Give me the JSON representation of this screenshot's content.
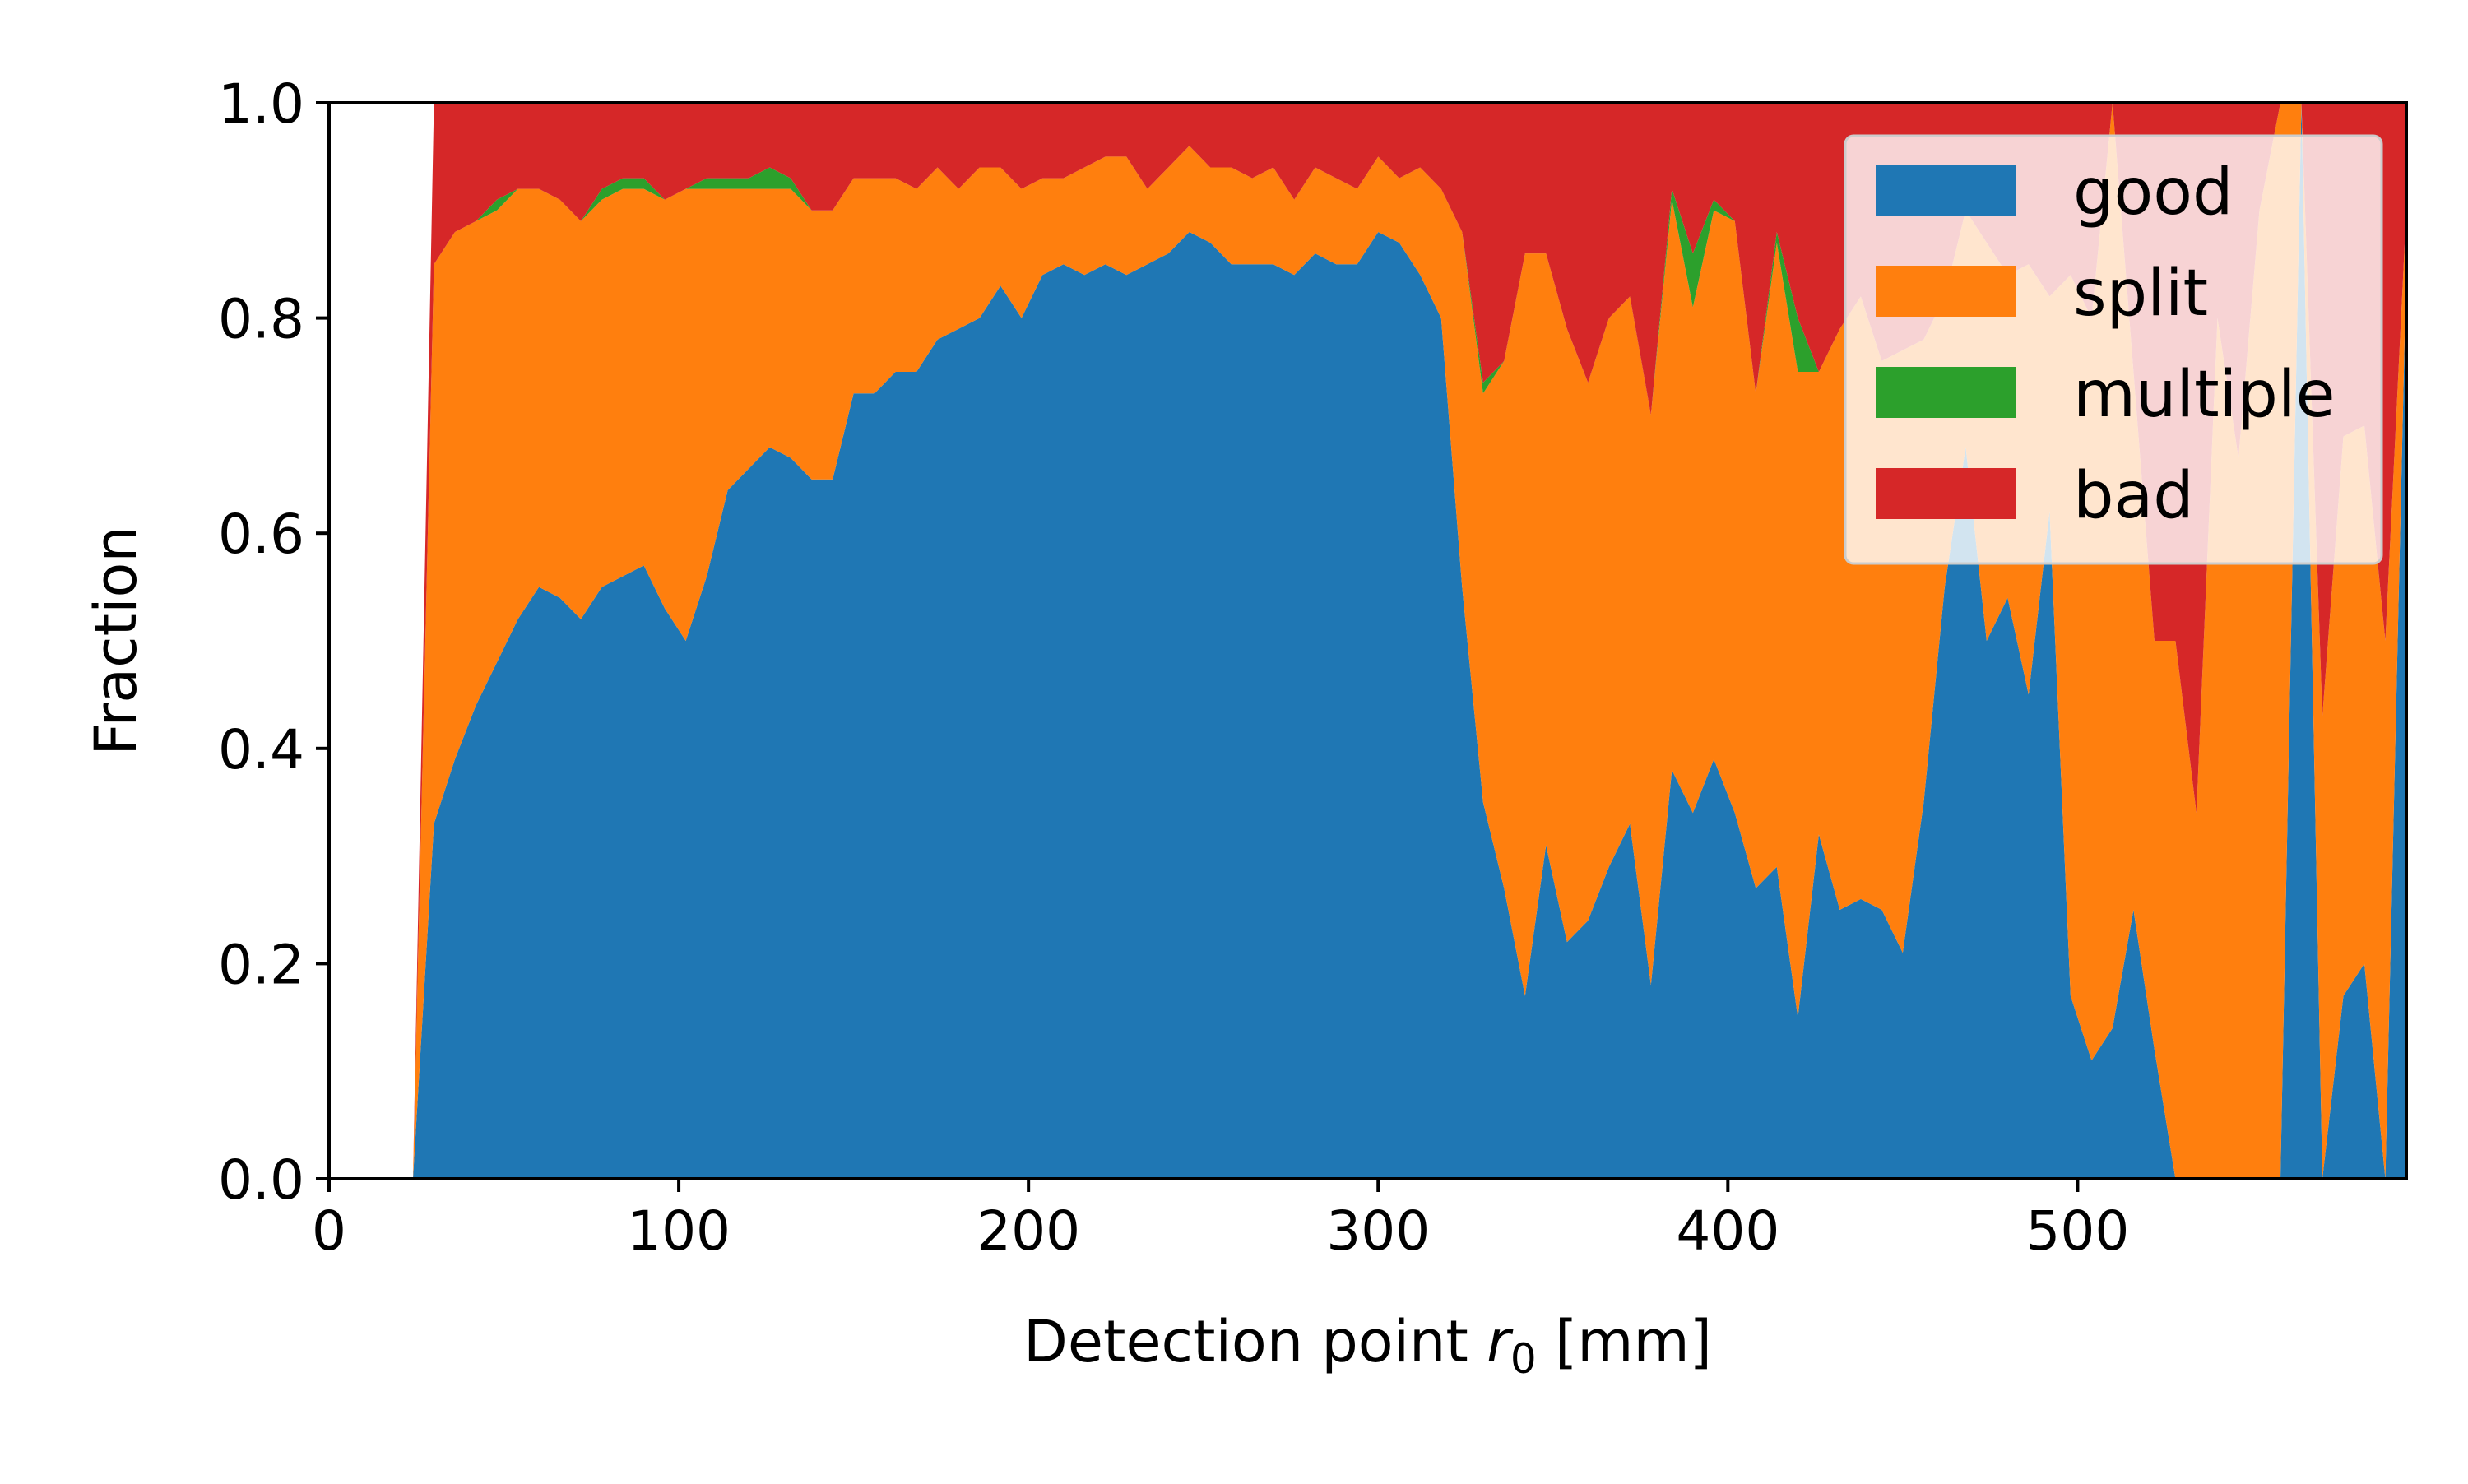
{
  "chart_data": {
    "type": "area",
    "stacked": true,
    "xlabel": "Detection point r₀ [mm]",
    "xlabel_parts": {
      "prefix": "Detection point ",
      "symbol": "r",
      "subscript": "0",
      "suffix": " [mm]"
    },
    "ylabel": "Fraction",
    "xlim": [
      0,
      594
    ],
    "ylim": [
      0,
      1.0
    ],
    "xticks": [
      0,
      100,
      200,
      300,
      400,
      500
    ],
    "xtick_labels": [
      "0",
      "100",
      "200",
      "300",
      "400",
      "500"
    ],
    "yticks": [
      0.0,
      0.2,
      0.4,
      0.6,
      0.8,
      1.0
    ],
    "ytick_labels": [
      "0.0",
      "0.2",
      "0.4",
      "0.6",
      "0.8",
      "1.0"
    ],
    "grid": false,
    "legend_position": "top-right",
    "x": [
      0,
      24,
      30,
      36,
      42,
      48,
      54,
      60,
      66,
      72,
      78,
      84,
      90,
      96,
      102,
      108,
      114,
      120,
      126,
      132,
      138,
      144,
      150,
      156,
      162,
      168,
      174,
      180,
      186,
      192,
      198,
      204,
      210,
      216,
      222,
      228,
      234,
      240,
      246,
      252,
      258,
      264,
      270,
      276,
      282,
      288,
      294,
      300,
      306,
      312,
      318,
      324,
      330,
      336,
      342,
      348,
      354,
      360,
      366,
      372,
      378,
      384,
      390,
      396,
      402,
      408,
      414,
      420,
      426,
      432,
      438,
      444,
      450,
      456,
      462,
      468,
      474,
      480,
      486,
      492,
      498,
      504,
      510,
      516,
      522,
      528,
      534,
      540,
      546,
      552,
      558,
      564,
      570,
      576,
      582,
      588,
      594
    ],
    "series": [
      {
        "name": "good",
        "color": "#1f77b4",
        "values": [
          0,
          0,
          0.33,
          0.39,
          0.44,
          0.48,
          0.52,
          0.55,
          0.54,
          0.52,
          0.55,
          0.56,
          0.57,
          0.53,
          0.5,
          0.56,
          0.64,
          0.66,
          0.68,
          0.67,
          0.65,
          0.65,
          0.73,
          0.73,
          0.75,
          0.75,
          0.78,
          0.79,
          0.8,
          0.83,
          0.8,
          0.84,
          0.85,
          0.84,
          0.85,
          0.84,
          0.85,
          0.86,
          0.88,
          0.87,
          0.85,
          0.85,
          0.85,
          0.84,
          0.86,
          0.85,
          0.85,
          0.88,
          0.87,
          0.84,
          0.8,
          0.55,
          0.35,
          0.27,
          0.17,
          0.31,
          0.22,
          0.24,
          0.29,
          0.33,
          0.18,
          0.38,
          0.34,
          0.39,
          0.34,
          0.27,
          0.29,
          0.15,
          0.32,
          0.25,
          0.26,
          0.25,
          0.21,
          0.35,
          0.55,
          0.68,
          0.5,
          0.54,
          0.45,
          0.62,
          0.17,
          0.11,
          0.14,
          0.25,
          0.12,
          0.0,
          0.0,
          0.0,
          0.0,
          0.0,
          0.0,
          1.0,
          0.0,
          0.17,
          0.2,
          0.0,
          0.85
        ]
      },
      {
        "name": "split",
        "color": "#ff7f0e",
        "values": [
          0,
          0,
          0.52,
          0.49,
          0.45,
          0.42,
          0.4,
          0.37,
          0.37,
          0.37,
          0.36,
          0.36,
          0.35,
          0.38,
          0.42,
          0.36,
          0.28,
          0.26,
          0.24,
          0.25,
          0.25,
          0.25,
          0.2,
          0.2,
          0.18,
          0.17,
          0.16,
          0.13,
          0.14,
          0.11,
          0.12,
          0.09,
          0.08,
          0.1,
          0.1,
          0.11,
          0.07,
          0.08,
          0.08,
          0.07,
          0.09,
          0.08,
          0.09,
          0.07,
          0.08,
          0.08,
          0.07,
          0.07,
          0.06,
          0.1,
          0.12,
          0.33,
          0.38,
          0.49,
          0.69,
          0.55,
          0.57,
          0.5,
          0.51,
          0.49,
          0.53,
          0.53,
          0.47,
          0.51,
          0.55,
          0.46,
          0.58,
          0.6,
          0.43,
          0.54,
          0.56,
          0.51,
          0.56,
          0.43,
          0.27,
          0.22,
          0.37,
          0.3,
          0.4,
          0.2,
          0.67,
          0.69,
          0.86,
          0.5,
          0.38,
          0.5,
          0.34,
          0.8,
          0.67,
          0.9,
          1.0,
          0.0,
          0.43,
          0.52,
          0.5,
          0.5,
          0.05
        ]
      },
      {
        "name": "multiple",
        "color": "#2ca02c",
        "values": [
          0,
          0,
          0.0,
          0.0,
          0.0,
          0.01,
          0.0,
          0.0,
          0.0,
          0.0,
          0.01,
          0.01,
          0.01,
          0.0,
          0.0,
          0.01,
          0.01,
          0.01,
          0.02,
          0.01,
          0.0,
          0.0,
          0.0,
          0.0,
          0.0,
          0.0,
          0.0,
          0.0,
          0.0,
          0.0,
          0.0,
          0.0,
          0.0,
          0.0,
          0.0,
          0.0,
          0.0,
          0.0,
          0.0,
          0.0,
          0.0,
          0.0,
          0.0,
          0.0,
          0.0,
          0.0,
          0.0,
          0.0,
          0.0,
          0.0,
          0.0,
          0.0,
          0.01,
          0.0,
          0.0,
          0.0,
          0.0,
          0.0,
          0.0,
          0.0,
          0.0,
          0.01,
          0.05,
          0.01,
          0.0,
          0.0,
          0.01,
          0.05,
          0.0,
          0.0,
          0.0,
          0.0,
          0.0,
          0.0,
          0.0,
          0.0,
          0.0,
          0.0,
          0.0,
          0.0,
          0.0,
          0.0,
          0.0,
          0.0,
          0.0,
          0.0,
          0.0,
          0.0,
          0.0,
          0.0,
          0.0,
          0.0,
          0.0,
          0.0,
          0.0,
          0.0,
          0.0
        ]
      },
      {
        "name": "bad",
        "color": "#d62728",
        "values": [
          0,
          0,
          0.15,
          0.12,
          0.11,
          0.09,
          0.08,
          0.08,
          0.09,
          0.11,
          0.08,
          0.07,
          0.07,
          0.09,
          0.08,
          0.07,
          0.07,
          0.07,
          0.06,
          0.07,
          0.1,
          0.1,
          0.07,
          0.07,
          0.07,
          0.08,
          0.06,
          0.08,
          0.06,
          0.06,
          0.08,
          0.07,
          0.07,
          0.06,
          0.05,
          0.05,
          0.08,
          0.06,
          0.04,
          0.06,
          0.06,
          0.07,
          0.06,
          0.09,
          0.06,
          0.07,
          0.08,
          0.05,
          0.07,
          0.06,
          0.08,
          0.12,
          0.26,
          0.24,
          0.14,
          0.14,
          0.21,
          0.26,
          0.2,
          0.18,
          0.29,
          0.08,
          0.14,
          0.09,
          0.11,
          0.27,
          0.12,
          0.2,
          0.25,
          0.21,
          0.18,
          0.24,
          0.23,
          0.22,
          0.18,
          0.1,
          0.13,
          0.16,
          0.15,
          0.18,
          0.16,
          0.2,
          0.0,
          0.25,
          0.5,
          0.5,
          0.66,
          0.2,
          0.33,
          0.1,
          0.0,
          0.0,
          0.57,
          0.31,
          0.3,
          0.5,
          0.1
        ]
      }
    ]
  }
}
